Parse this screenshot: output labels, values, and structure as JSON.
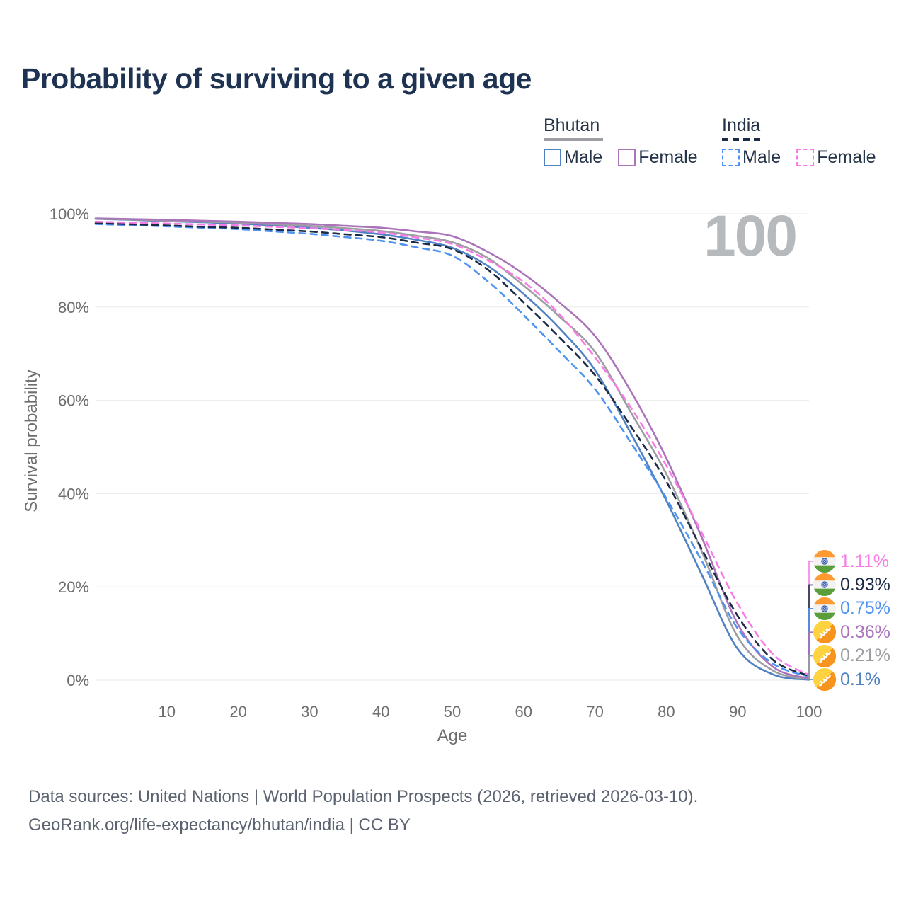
{
  "page": {
    "title": "Probability of surviving to a given age",
    "watermark_age": "100",
    "footer_line1": "Data sources: United Nations | World Population Prospects (2026, retrieved 2026-03-10).",
    "footer_line2": "GeoRank.org/life-expectancy/bhutan/india | CC BY"
  },
  "legend": {
    "groups": [
      {
        "key": "bhutan",
        "label": "Bhutan",
        "style": "solid",
        "items": [
          {
            "key": "bhutan_male",
            "label": "Male"
          },
          {
            "key": "bhutan_female",
            "label": "Female"
          }
        ]
      },
      {
        "key": "india",
        "label": "India",
        "style": "dashed",
        "items": [
          {
            "key": "india_male",
            "label": "Male"
          },
          {
            "key": "india_female",
            "label": "Female"
          }
        ]
      }
    ]
  },
  "chart_data": {
    "type": "line",
    "title": "Probability of surviving to a given age",
    "xlabel": "Age",
    "ylabel": "Survival probability",
    "xlim": [
      0,
      100
    ],
    "ylim": [
      0,
      100
    ],
    "grid": "horizontal-only",
    "legend_position": "top-right",
    "x_ticks": [
      10,
      20,
      30,
      40,
      50,
      60,
      70,
      80,
      90,
      100
    ],
    "y_ticks": [
      {
        "v": 0,
        "label": "0%"
      },
      {
        "v": 20,
        "label": "20%"
      },
      {
        "v": 40,
        "label": "40%"
      },
      {
        "v": 60,
        "label": "60%"
      },
      {
        "v": 80,
        "label": "80%"
      },
      {
        "v": 100,
        "label": "100%"
      }
    ],
    "ages": [
      0,
      5,
      10,
      15,
      20,
      25,
      30,
      35,
      40,
      45,
      50,
      55,
      60,
      65,
      70,
      75,
      80,
      85,
      90,
      95,
      100
    ],
    "series": [
      {
        "key": "bhutan_male",
        "name": "Bhutan Male",
        "country": "Bhutan",
        "flag_icon": "bhutan-flag-icon",
        "color": "#5081c2",
        "dash": "solid",
        "end_label": "0.1%",
        "values": [
          98.9,
          98.7,
          98.4,
          98.2,
          97.9,
          97.5,
          97.0,
          96.4,
          95.6,
          94.4,
          92.7,
          88.8,
          82.8,
          75.5,
          66.5,
          53.0,
          38.5,
          22.5,
          6.7,
          1.2,
          0.1
        ]
      },
      {
        "key": "bhutan_total",
        "name": "Bhutan Total",
        "country": "Bhutan",
        "flag_icon": "bhutan-flag-icon",
        "color": "#9d9ea2",
        "dash": "solid",
        "end_label": "0.21%",
        "values": [
          98.95,
          98.75,
          98.55,
          98.3,
          98.1,
          97.75,
          97.4,
          96.9,
          96.3,
          95.3,
          93.9,
          90.5,
          84.6,
          78.0,
          70.4,
          57.5,
          44.2,
          27.5,
          9.3,
          2.0,
          0.21
        ]
      },
      {
        "key": "bhutan_female",
        "name": "Bhutan Female",
        "country": "Bhutan",
        "flag_icon": "bhutan-flag-icon",
        "color": "#ab74ba",
        "dash": "solid",
        "end_label": "0.36%",
        "values": [
          99.0,
          98.85,
          98.7,
          98.5,
          98.3,
          98.05,
          97.8,
          97.4,
          97.0,
          96.2,
          95.2,
          91.8,
          87.1,
          81.0,
          73.8,
          62.0,
          47.6,
          30.5,
          12.1,
          2.8,
          0.36
        ]
      },
      {
        "key": "india_male",
        "name": "India Male",
        "country": "India",
        "flag_icon": "india-flag-icon",
        "color": "#4f93f2",
        "dash": "dashed",
        "end_label": "0.75%",
        "values": [
          97.8,
          97.55,
          97.3,
          97.0,
          96.7,
          96.2,
          95.7,
          95.0,
          94.2,
          92.8,
          91.0,
          85.5,
          78.3,
          70.5,
          62.4,
          51.0,
          39.0,
          25.5,
          11.1,
          3.5,
          0.75
        ]
      },
      {
        "key": "india_total",
        "name": "India Total",
        "country": "India",
        "flag_icon": "india-flag-icon",
        "color": "#1c2b45",
        "dash": "dashed",
        "end_label": "0.93%",
        "values": [
          98.0,
          97.75,
          97.5,
          97.2,
          97.0,
          96.6,
          96.2,
          95.6,
          95.0,
          93.8,
          92.4,
          88.0,
          81.0,
          73.5,
          65.4,
          54.5,
          42.6,
          28.0,
          13.8,
          4.3,
          0.93
        ]
      },
      {
        "key": "india_female",
        "name": "India Female",
        "country": "India",
        "flag_icon": "india-flag-icon",
        "color": "#f97ce6",
        "dash": "dashed",
        "end_label": "1.11%",
        "values": [
          98.3,
          98.1,
          97.9,
          97.7,
          97.5,
          97.2,
          96.9,
          96.5,
          96.0,
          94.9,
          93.5,
          90.0,
          85.4,
          78.5,
          69.2,
          58.5,
          46.0,
          31.5,
          16.4,
          5.5,
          1.11
        ]
      }
    ]
  }
}
